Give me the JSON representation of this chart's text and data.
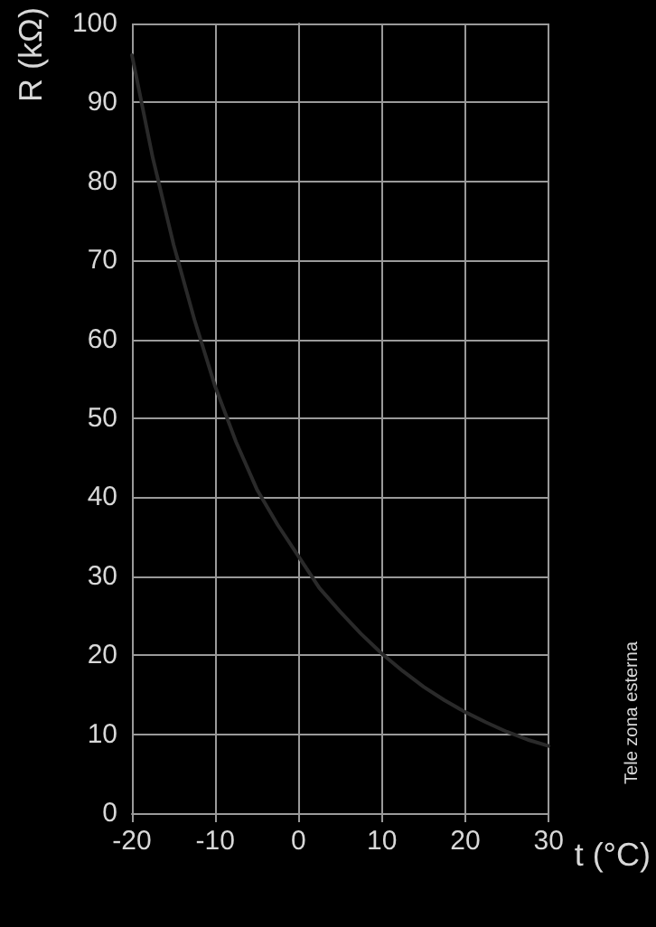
{
  "chart_data": {
    "type": "line",
    "xlabel": "t (°C)",
    "ylabel": "R (kΩ)",
    "x": [
      -20,
      -17.5,
      -15,
      -12.5,
      -10,
      -7.5,
      -5,
      -2.5,
      0,
      2.5,
      5,
      7.5,
      10,
      12.5,
      15,
      17.5,
      20,
      22.5,
      25,
      27.5,
      30
    ],
    "series": [
      {
        "color": "#2a2a2a",
        "values": [
          96,
          83,
          72,
          62.5,
          54,
          47,
          41,
          36.5,
          32.5,
          28.5,
          25.5,
          22.7,
          20.2,
          18,
          16,
          14.3,
          12.8,
          11.5,
          10.3,
          9.3,
          8.5
        ]
      }
    ],
    "xlim": [
      -20,
      30
    ],
    "xticks": [
      -20,
      -10,
      0,
      10,
      20,
      30
    ],
    "ylim": [
      0,
      100
    ],
    "yticks": [
      0,
      10,
      20,
      30,
      40,
      50,
      60,
      70,
      80,
      90,
      100
    ],
    "grid": true,
    "marker": "none",
    "line_style": "solid",
    "annotations": [
      "Tele zona esterna"
    ]
  }
}
